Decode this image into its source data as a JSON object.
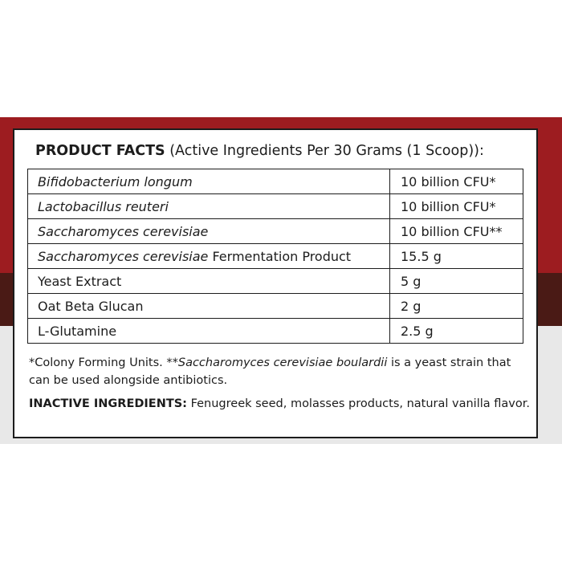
{
  "title": {
    "heading": "PRODUCT FACTS",
    "subheading": " (Active Ingredients Per 30 Grams (1 Scoop)):"
  },
  "ingredients": [
    {
      "name_italic": "Bifidobacterium longum",
      "name_plain": "",
      "amount": "10 billion CFU*"
    },
    {
      "name_italic": "Lactobacillus reuteri",
      "name_plain": "",
      "amount": "10 billion CFU*"
    },
    {
      "name_italic": "Saccharomyces cerevisiae",
      "name_plain": "",
      "amount": "10 billion CFU**"
    },
    {
      "name_italic": "Saccharomyces cerevisiae",
      "name_plain": " Fermentation Product",
      "amount": "15.5 g"
    },
    {
      "name_italic": "",
      "name_plain": "Yeast Extract",
      "amount": "5 g"
    },
    {
      "name_italic": "",
      "name_plain": "Oat Beta Glucan",
      "amount": "2 g"
    },
    {
      "name_italic": "",
      "name_plain": "L-Glutamine",
      "amount": "2.5 g"
    }
  ],
  "footnote": {
    "part1": "*Colony Forming Units. **",
    "italic": "Saccharomyces cerevisiae boulardii",
    "part2": " is a yeast strain that can be used alongside antibiotics."
  },
  "inactive": {
    "label": "INACTIVE INGREDIENTS:",
    "text": " Fenugreek seed, molasses products, natural vanilla flavor."
  },
  "colors": {
    "band_red": "#9d1c20",
    "band_brown": "#4a1a15",
    "band_grey": "#e8e8e8",
    "border": "#1c1c1c"
  }
}
